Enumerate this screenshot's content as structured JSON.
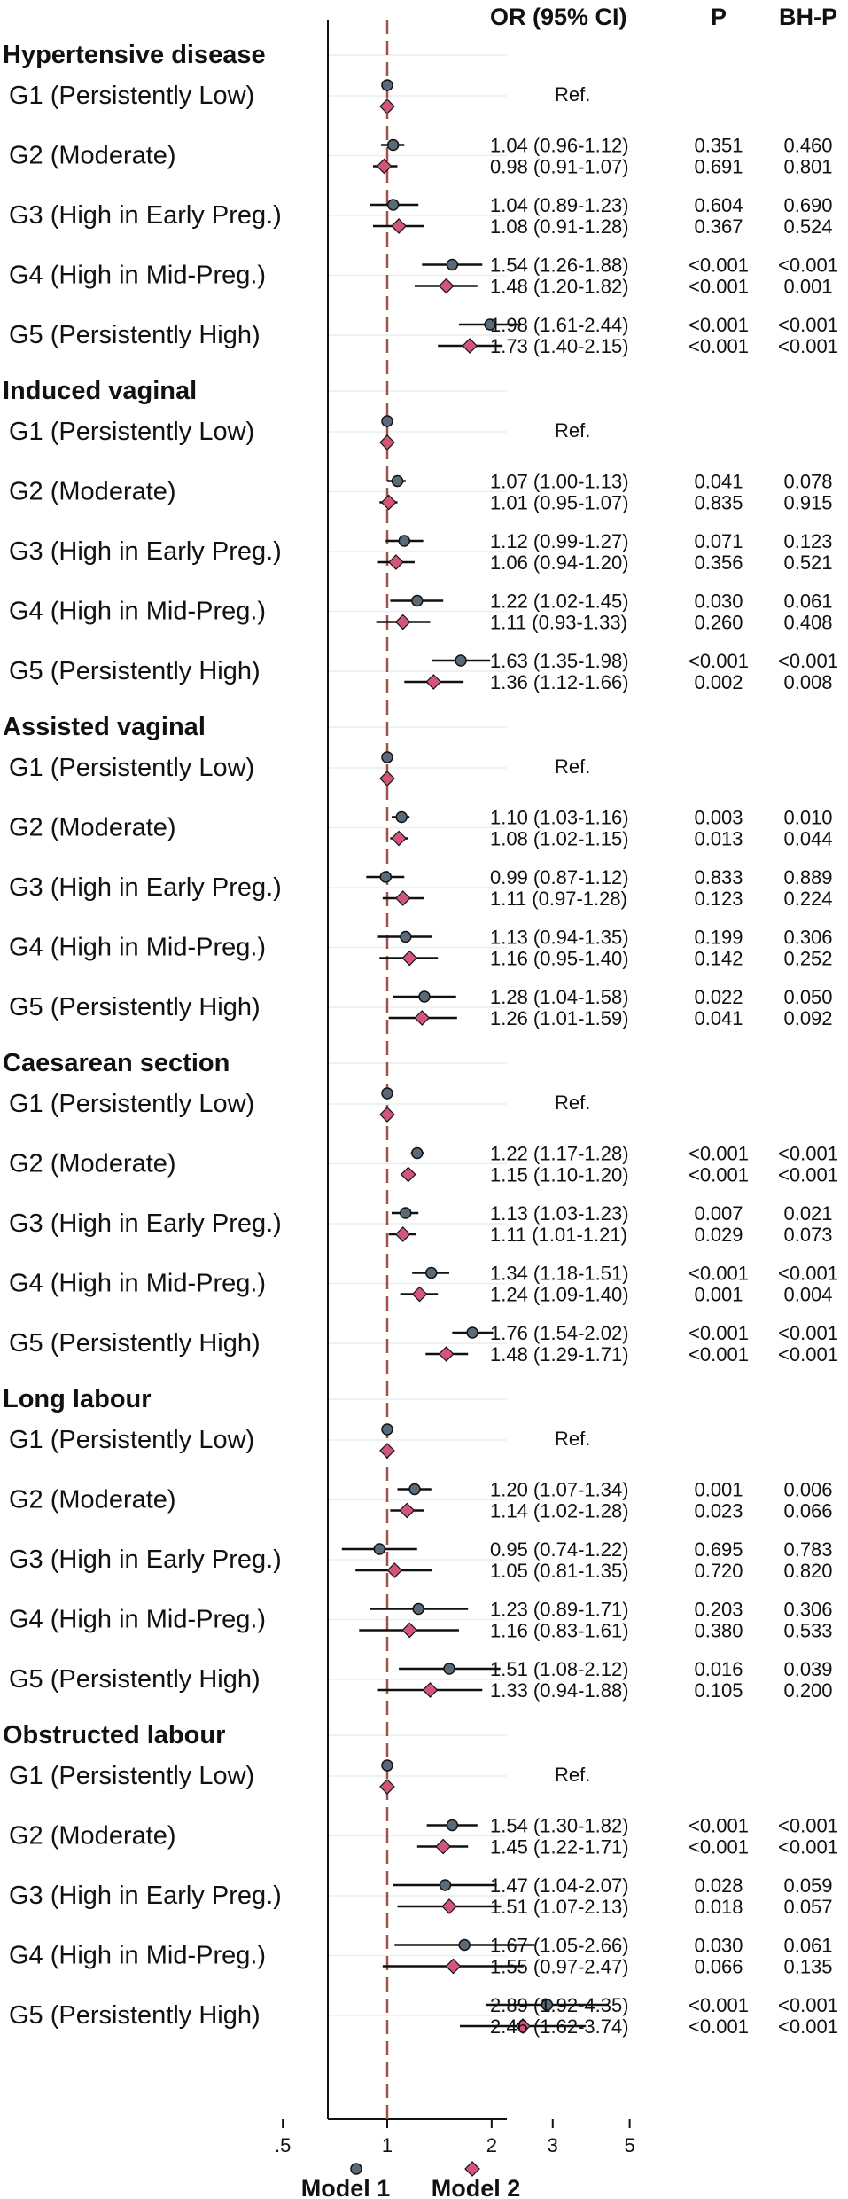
{
  "chart_data": {
    "type": "forest",
    "column_headers": {
      "or": "OR (95% CI)",
      "p": "P",
      "bh": "BH-P"
    },
    "x_axis": {
      "scale": "log",
      "ticks": [
        0.5,
        1,
        2,
        3,
        5
      ],
      "tick_labels": [
        ".5",
        "1",
        "2",
        "3",
        "5"
      ],
      "xlim": [
        0.43,
        5.5
      ],
      "reference_line": 1,
      "reference_line_color": "#a0524a",
      "reference_line_style": "dashed",
      "grid": "horizontal rows, light"
    },
    "series": [
      {
        "name": "Model 1",
        "marker": "circle",
        "color": "#5a6a78"
      },
      {
        "name": "Model 2",
        "marker": "diamond",
        "color": "#d4557a"
      }
    ],
    "legend_position": "bottom",
    "outcomes": [
      {
        "name": "Hypertensive disease",
        "groups": [
          {
            "label": "G1 (Persistently Low)",
            "ref": "Ref.",
            "m1": {
              "or": 1.0,
              "lo": 1.0,
              "hi": 1.0
            },
            "m2": {
              "or": 1.0,
              "lo": 1.0,
              "hi": 1.0
            }
          },
          {
            "label": "G2 (Moderate)",
            "m1": {
              "or": 1.04,
              "lo": 0.96,
              "hi": 1.12,
              "text": "1.04 (0.96-1.12)",
              "p": "0.351",
              "bh": "0.460"
            },
            "m2": {
              "or": 0.98,
              "lo": 0.91,
              "hi": 1.07,
              "text": "0.98 (0.91-1.07)",
              "p": "0.691",
              "bh": "0.801"
            }
          },
          {
            "label": "G3 (High in Early Preg.)",
            "m1": {
              "or": 1.04,
              "lo": 0.89,
              "hi": 1.23,
              "text": "1.04 (0.89-1.23)",
              "p": "0.604",
              "bh": "0.690"
            },
            "m2": {
              "or": 1.08,
              "lo": 0.91,
              "hi": 1.28,
              "text": "1.08 (0.91-1.28)",
              "p": "0.367",
              "bh": "0.524"
            }
          },
          {
            "label": "G4 (High in Mid-Preg.)",
            "m1": {
              "or": 1.54,
              "lo": 1.26,
              "hi": 1.88,
              "text": "1.54 (1.26-1.88)",
              "p": "<0.001",
              "bh": "<0.001"
            },
            "m2": {
              "or": 1.48,
              "lo": 1.2,
              "hi": 1.82,
              "text": "1.48 (1.20-1.82)",
              "p": "<0.001",
              "bh": "0.001"
            }
          },
          {
            "label": "G5 (Persistently High)",
            "m1": {
              "or": 1.98,
              "lo": 1.61,
              "hi": 2.44,
              "text": "1.98 (1.61-2.44)",
              "p": "<0.001",
              "bh": "<0.001"
            },
            "m2": {
              "or": 1.73,
              "lo": 1.4,
              "hi": 2.15,
              "text": "1.73 (1.40-2.15)",
              "p": "<0.001",
              "bh": "<0.001"
            }
          }
        ]
      },
      {
        "name": "Induced vaginal",
        "groups": [
          {
            "label": "G1 (Persistently Low)",
            "ref": "Ref.",
            "m1": {
              "or": 1.0,
              "lo": 1.0,
              "hi": 1.0
            },
            "m2": {
              "or": 1.0,
              "lo": 1.0,
              "hi": 1.0
            }
          },
          {
            "label": "G2 (Moderate)",
            "m1": {
              "or": 1.07,
              "lo": 1.0,
              "hi": 1.13,
              "text": "1.07 (1.00-1.13)",
              "p": "0.041",
              "bh": "0.078"
            },
            "m2": {
              "or": 1.01,
              "lo": 0.95,
              "hi": 1.07,
              "text": "1.01 (0.95-1.07)",
              "p": "0.835",
              "bh": "0.915"
            }
          },
          {
            "label": "G3 (High in Early Preg.)",
            "m1": {
              "or": 1.12,
              "lo": 0.99,
              "hi": 1.27,
              "text": "1.12 (0.99-1.27)",
              "p": "0.071",
              "bh": "0.123"
            },
            "m2": {
              "or": 1.06,
              "lo": 0.94,
              "hi": 1.2,
              "text": "1.06 (0.94-1.20)",
              "p": "0.356",
              "bh": "0.521"
            }
          },
          {
            "label": "G4 (High in Mid-Preg.)",
            "m1": {
              "or": 1.22,
              "lo": 1.02,
              "hi": 1.45,
              "text": "1.22 (1.02-1.45)",
              "p": "0.030",
              "bh": "0.061"
            },
            "m2": {
              "or": 1.11,
              "lo": 0.93,
              "hi": 1.33,
              "text": "1.11 (0.93-1.33)",
              "p": "0.260",
              "bh": "0.408"
            }
          },
          {
            "label": "G5 (Persistently High)",
            "m1": {
              "or": 1.63,
              "lo": 1.35,
              "hi": 1.98,
              "text": "1.63 (1.35-1.98)",
              "p": "<0.001",
              "bh": "<0.001"
            },
            "m2": {
              "or": 1.36,
              "lo": 1.12,
              "hi": 1.66,
              "text": "1.36 (1.12-1.66)",
              "p": "0.002",
              "bh": "0.008"
            }
          }
        ]
      },
      {
        "name": "Assisted vaginal",
        "groups": [
          {
            "label": "G1 (Persistently Low)",
            "ref": "Ref.",
            "m1": {
              "or": 1.0,
              "lo": 1.0,
              "hi": 1.0
            },
            "m2": {
              "or": 1.0,
              "lo": 1.0,
              "hi": 1.0
            }
          },
          {
            "label": "G2 (Moderate)",
            "m1": {
              "or": 1.1,
              "lo": 1.03,
              "hi": 1.16,
              "text": "1.10 (1.03-1.16)",
              "p": "0.003",
              "bh": "0.010"
            },
            "m2": {
              "or": 1.08,
              "lo": 1.02,
              "hi": 1.15,
              "text": "1.08 (1.02-1.15)",
              "p": "0.013",
              "bh": "0.044"
            }
          },
          {
            "label": "G3 (High in Early Preg.)",
            "m1": {
              "or": 0.99,
              "lo": 0.87,
              "hi": 1.12,
              "text": "0.99 (0.87-1.12)",
              "p": "0.833",
              "bh": "0.889"
            },
            "m2": {
              "or": 1.11,
              "lo": 0.97,
              "hi": 1.28,
              "text": "1.11 (0.97-1.28)",
              "p": "0.123",
              "bh": "0.224"
            }
          },
          {
            "label": "G4 (High in Mid-Preg.)",
            "m1": {
              "or": 1.13,
              "lo": 0.94,
              "hi": 1.35,
              "text": "1.13 (0.94-1.35)",
              "p": "0.199",
              "bh": "0.306"
            },
            "m2": {
              "or": 1.16,
              "lo": 0.95,
              "hi": 1.4,
              "text": "1.16 (0.95-1.40)",
              "p": "0.142",
              "bh": "0.252"
            }
          },
          {
            "label": "G5 (Persistently High)",
            "m1": {
              "or": 1.28,
              "lo": 1.04,
              "hi": 1.58,
              "text": "1.28 (1.04-1.58)",
              "p": "0.022",
              "bh": "0.050"
            },
            "m2": {
              "or": 1.26,
              "lo": 1.01,
              "hi": 1.59,
              "text": "1.26 (1.01-1.59)",
              "p": "0.041",
              "bh": "0.092"
            }
          }
        ]
      },
      {
        "name": "Caesarean section",
        "groups": [
          {
            "label": "G1 (Persistently Low)",
            "ref": "Ref.",
            "m1": {
              "or": 1.0,
              "lo": 1.0,
              "hi": 1.0
            },
            "m2": {
              "or": 1.0,
              "lo": 1.0,
              "hi": 1.0
            }
          },
          {
            "label": "G2 (Moderate)",
            "m1": {
              "or": 1.22,
              "lo": 1.17,
              "hi": 1.28,
              "text": "1.22 (1.17-1.28)",
              "p": "<0.001",
              "bh": "<0.001"
            },
            "m2": {
              "or": 1.15,
              "lo": 1.1,
              "hi": 1.2,
              "text": "1.15 (1.10-1.20)",
              "p": "<0.001",
              "bh": "<0.001"
            }
          },
          {
            "label": "G3 (High in Early Preg.)",
            "m1": {
              "or": 1.13,
              "lo": 1.03,
              "hi": 1.23,
              "text": "1.13 (1.03-1.23)",
              "p": "0.007",
              "bh": "0.021"
            },
            "m2": {
              "or": 1.11,
              "lo": 1.01,
              "hi": 1.21,
              "text": "1.11 (1.01-1.21)",
              "p": "0.029",
              "bh": "0.073"
            }
          },
          {
            "label": "G4 (High in Mid-Preg.)",
            "m1": {
              "or": 1.34,
              "lo": 1.18,
              "hi": 1.51,
              "text": "1.34 (1.18-1.51)",
              "p": "<0.001",
              "bh": "<0.001"
            },
            "m2": {
              "or": 1.24,
              "lo": 1.09,
              "hi": 1.4,
              "text": "1.24 (1.09-1.40)",
              "p": "0.001",
              "bh": "0.004"
            }
          },
          {
            "label": "G5 (Persistently High)",
            "m1": {
              "or": 1.76,
              "lo": 1.54,
              "hi": 2.02,
              "text": "1.76 (1.54-2.02)",
              "p": "<0.001",
              "bh": "<0.001"
            },
            "m2": {
              "or": 1.48,
              "lo": 1.29,
              "hi": 1.71,
              "text": "1.48 (1.29-1.71)",
              "p": "<0.001",
              "bh": "<0.001"
            }
          }
        ]
      },
      {
        "name": "Long labour",
        "groups": [
          {
            "label": "G1 (Persistently Low)",
            "ref": "Ref.",
            "m1": {
              "or": 1.0,
              "lo": 1.0,
              "hi": 1.0
            },
            "m2": {
              "or": 1.0,
              "lo": 1.0,
              "hi": 1.0
            }
          },
          {
            "label": "G2 (Moderate)",
            "m1": {
              "or": 1.2,
              "lo": 1.07,
              "hi": 1.34,
              "text": "1.20 (1.07-1.34)",
              "p": "0.001",
              "bh": "0.006"
            },
            "m2": {
              "or": 1.14,
              "lo": 1.02,
              "hi": 1.28,
              "text": "1.14 (1.02-1.28)",
              "p": "0.023",
              "bh": "0.066"
            }
          },
          {
            "label": "G3 (High in Early Preg.)",
            "m1": {
              "or": 0.95,
              "lo": 0.74,
              "hi": 1.22,
              "text": "0.95 (0.74-1.22)",
              "p": "0.695",
              "bh": "0.783"
            },
            "m2": {
              "or": 1.05,
              "lo": 0.81,
              "hi": 1.35,
              "text": "1.05 (0.81-1.35)",
              "p": "0.720",
              "bh": "0.820"
            }
          },
          {
            "label": "G4 (High in Mid-Preg.)",
            "m1": {
              "or": 1.23,
              "lo": 0.89,
              "hi": 1.71,
              "text": "1.23 (0.89-1.71)",
              "p": "0.203",
              "bh": "0.306"
            },
            "m2": {
              "or": 1.16,
              "lo": 0.83,
              "hi": 1.61,
              "text": "1.16 (0.83-1.61)",
              "p": "0.380",
              "bh": "0.533"
            }
          },
          {
            "label": "G5 (Persistently High)",
            "m1": {
              "or": 1.51,
              "lo": 1.08,
              "hi": 2.12,
              "text": "1.51 (1.08-2.12)",
              "p": "0.016",
              "bh": "0.039"
            },
            "m2": {
              "or": 1.33,
              "lo": 0.94,
              "hi": 1.88,
              "text": "1.33 (0.94-1.88)",
              "p": "0.105",
              "bh": "0.200"
            }
          }
        ]
      },
      {
        "name": "Obstructed labour",
        "groups": [
          {
            "label": "G1 (Persistently Low)",
            "ref": "Ref.",
            "m1": {
              "or": 1.0,
              "lo": 1.0,
              "hi": 1.0
            },
            "m2": {
              "or": 1.0,
              "lo": 1.0,
              "hi": 1.0
            }
          },
          {
            "label": "G2 (Moderate)",
            "m1": {
              "or": 1.54,
              "lo": 1.3,
              "hi": 1.82,
              "text": "1.54 (1.30-1.82)",
              "p": "<0.001",
              "bh": "<0.001"
            },
            "m2": {
              "or": 1.45,
              "lo": 1.22,
              "hi": 1.71,
              "text": "1.45 (1.22-1.71)",
              "p": "<0.001",
              "bh": "<0.001"
            }
          },
          {
            "label": "G3 (High in Early Preg.)",
            "m1": {
              "or": 1.47,
              "lo": 1.04,
              "hi": 2.07,
              "text": "1.47 (1.04-2.07)",
              "p": "0.028",
              "bh": "0.059"
            },
            "m2": {
              "or": 1.51,
              "lo": 1.07,
              "hi": 2.13,
              "text": "1.51 (1.07-2.13)",
              "p": "0.018",
              "bh": "0.057"
            }
          },
          {
            "label": "G4 (High in Mid-Preg.)",
            "m1": {
              "or": 1.67,
              "lo": 1.05,
              "hi": 2.66,
              "text": "1.67 (1.05-2.66)",
              "p": "0.030",
              "bh": "0.061"
            },
            "m2": {
              "or": 1.55,
              "lo": 0.97,
              "hi": 2.47,
              "text": "1.55 (0.97-2.47)",
              "p": "0.066",
              "bh": "0.135"
            }
          },
          {
            "label": "G5 (Persistently High)",
            "m1": {
              "or": 2.89,
              "lo": 1.92,
              "hi": 4.35,
              "text": "2.89 (1.92-4.35)",
              "p": "<0.001",
              "bh": "<0.001"
            },
            "m2": {
              "or": 2.46,
              "lo": 1.62,
              "hi": 3.74,
              "text": "2.46 (1.62-3.74)",
              "p": "<0.001",
              "bh": "<0.001"
            }
          }
        ]
      }
    ]
  }
}
